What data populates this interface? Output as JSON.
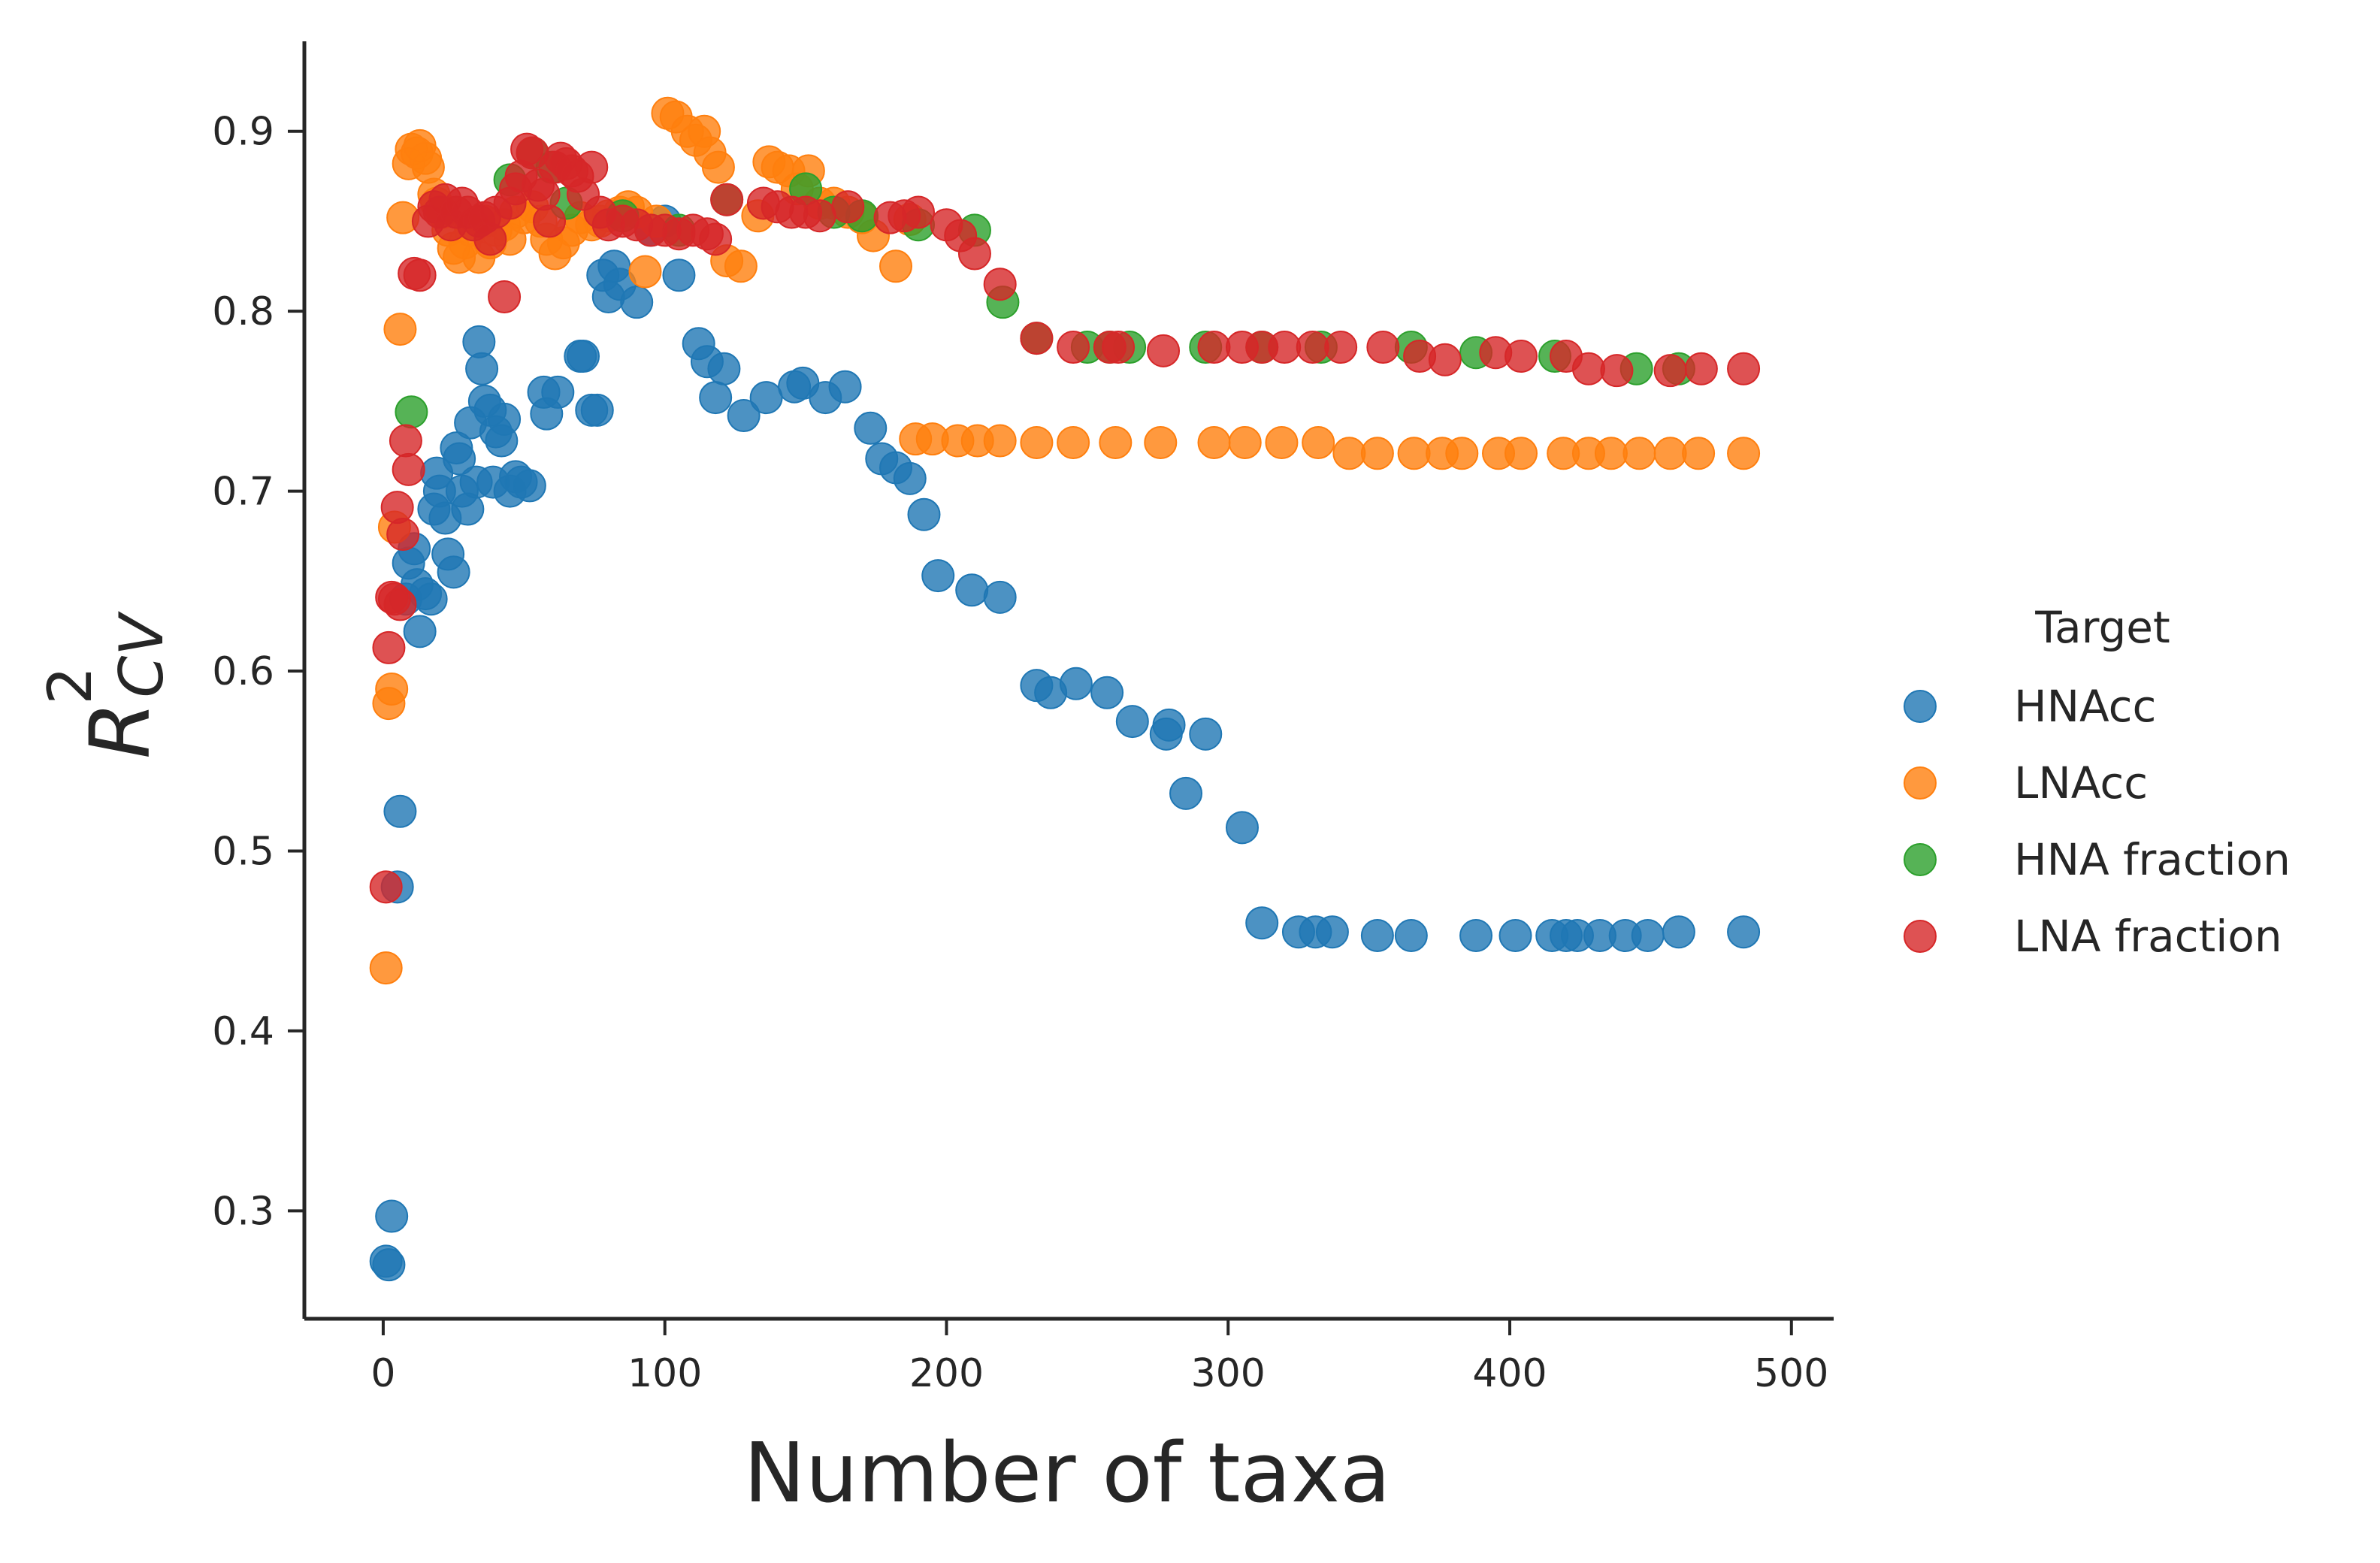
{
  "chart_data": {
    "type": "scatter",
    "xlabel": "Number of taxa",
    "ylabel": {
      "base": "R",
      "sup": "2",
      "sub": "CV"
    },
    "xlim": [
      -28,
      515
    ],
    "ylim": [
      0.24,
      0.95
    ],
    "x_ticks": [
      0,
      100,
      200,
      300,
      400,
      500
    ],
    "y_ticks": [
      0.3,
      0.4,
      0.5,
      0.6,
      0.7,
      0.8,
      0.9
    ],
    "x_tick_labels": [
      "0",
      "100",
      "200",
      "300",
      "400",
      "500"
    ],
    "y_tick_labels": [
      "0.3",
      "0.4",
      "0.5",
      "0.6",
      "0.7",
      "0.8",
      "0.9"
    ],
    "legend": {
      "title": "Target",
      "placement": "right"
    },
    "series": [
      {
        "name": "HNAcc",
        "color": "#1f77b4",
        "points": [
          [
            1,
            0.272
          ],
          [
            2,
            0.27
          ],
          [
            3,
            0.297
          ],
          [
            5,
            0.48
          ],
          [
            6,
            0.522
          ],
          [
            8,
            0.64
          ],
          [
            9,
            0.66
          ],
          [
            11,
            0.668
          ],
          [
            12,
            0.648
          ],
          [
            13,
            0.622
          ],
          [
            15,
            0.643
          ],
          [
            17,
            0.64
          ],
          [
            18,
            0.69
          ],
          [
            19,
            0.71
          ],
          [
            20,
            0.7
          ],
          [
            22,
            0.685
          ],
          [
            23,
            0.665
          ],
          [
            25,
            0.655
          ],
          [
            26,
            0.724
          ],
          [
            27,
            0.718
          ],
          [
            28,
            0.7
          ],
          [
            30,
            0.69
          ],
          [
            31,
            0.738
          ],
          [
            33,
            0.705
          ],
          [
            34,
            0.783
          ],
          [
            35,
            0.768
          ],
          [
            36,
            0.75
          ],
          [
            38,
            0.745
          ],
          [
            39,
            0.705
          ],
          [
            40,
            0.733
          ],
          [
            42,
            0.728
          ],
          [
            43,
            0.74
          ],
          [
            45,
            0.7
          ],
          [
            47,
            0.708
          ],
          [
            49,
            0.705
          ],
          [
            52,
            0.703
          ],
          [
            57,
            0.755
          ],
          [
            58,
            0.743
          ],
          [
            62,
            0.755
          ],
          [
            70,
            0.775
          ],
          [
            71,
            0.775
          ],
          [
            74,
            0.745
          ],
          [
            76,
            0.745
          ],
          [
            78,
            0.82
          ],
          [
            80,
            0.808
          ],
          [
            82,
            0.825
          ],
          [
            84,
            0.815
          ],
          [
            90,
            0.805
          ],
          [
            95,
            0.845
          ],
          [
            100,
            0.85
          ],
          [
            105,
            0.82
          ],
          [
            112,
            0.782
          ],
          [
            115,
            0.772
          ],
          [
            118,
            0.752
          ],
          [
            121,
            0.768
          ],
          [
            128,
            0.742
          ],
          [
            136,
            0.752
          ],
          [
            146,
            0.758
          ],
          [
            149,
            0.76
          ],
          [
            157,
            0.752
          ],
          [
            164,
            0.758
          ],
          [
            173,
            0.735
          ],
          [
            177,
            0.718
          ],
          [
            182,
            0.713
          ],
          [
            187,
            0.707
          ],
          [
            192,
            0.687
          ],
          [
            197,
            0.653
          ],
          [
            209,
            0.645
          ],
          [
            219,
            0.641
          ],
          [
            232,
            0.592
          ],
          [
            237,
            0.588
          ],
          [
            246,
            0.593
          ],
          [
            257,
            0.588
          ],
          [
            266,
            0.572
          ],
          [
            278,
            0.565
          ],
          [
            279,
            0.57
          ],
          [
            285,
            0.532
          ],
          [
            292,
            0.565
          ],
          [
            305,
            0.513
          ],
          [
            312,
            0.46
          ],
          [
            325,
            0.455
          ],
          [
            331,
            0.455
          ],
          [
            337,
            0.455
          ],
          [
            353,
            0.453
          ],
          [
            365,
            0.453
          ],
          [
            388,
            0.453
          ],
          [
            402,
            0.453
          ],
          [
            415,
            0.453
          ],
          [
            420,
            0.453
          ],
          [
            424,
            0.453
          ],
          [
            432,
            0.453
          ],
          [
            441,
            0.453
          ],
          [
            449,
            0.453
          ],
          [
            460,
            0.455
          ],
          [
            483,
            0.455
          ]
        ]
      },
      {
        "name": "LNAcc",
        "color": "#ff7f0e",
        "points": [
          [
            1,
            0.435
          ],
          [
            2,
            0.582
          ],
          [
            3,
            0.59
          ],
          [
            4,
            0.68
          ],
          [
            6,
            0.79
          ],
          [
            7,
            0.852
          ],
          [
            9,
            0.882
          ],
          [
            10,
            0.89
          ],
          [
            12,
            0.888
          ],
          [
            13,
            0.892
          ],
          [
            15,
            0.885
          ],
          [
            16,
            0.88
          ],
          [
            18,
            0.865
          ],
          [
            19,
            0.86
          ],
          [
            21,
            0.855
          ],
          [
            23,
            0.845
          ],
          [
            25,
            0.835
          ],
          [
            27,
            0.83
          ],
          [
            29,
            0.838
          ],
          [
            31,
            0.845
          ],
          [
            34,
            0.83
          ],
          [
            36,
            0.85
          ],
          [
            38,
            0.838
          ],
          [
            40,
            0.845
          ],
          [
            43,
            0.848
          ],
          [
            45,
            0.84
          ],
          [
            47,
            0.855
          ],
          [
            50,
            0.852
          ],
          [
            53,
            0.858
          ],
          [
            56,
            0.85
          ],
          [
            58,
            0.84
          ],
          [
            61,
            0.832
          ],
          [
            64,
            0.838
          ],
          [
            67,
            0.845
          ],
          [
            70,
            0.852
          ],
          [
            74,
            0.848
          ],
          [
            77,
            0.85
          ],
          [
            80,
            0.853
          ],
          [
            84,
            0.855
          ],
          [
            87,
            0.858
          ],
          [
            90,
            0.855
          ],
          [
            93,
            0.822
          ],
          [
            97,
            0.85
          ],
          [
            101,
            0.91
          ],
          [
            104,
            0.908
          ],
          [
            108,
            0.9
          ],
          [
            111,
            0.895
          ],
          [
            114,
            0.9
          ],
          [
            116,
            0.888
          ],
          [
            119,
            0.88
          ],
          [
            122,
            0.828
          ],
          [
            127,
            0.825
          ],
          [
            133,
            0.853
          ],
          [
            137,
            0.883
          ],
          [
            140,
            0.88
          ],
          [
            144,
            0.878
          ],
          [
            147,
            0.868
          ],
          [
            151,
            0.878
          ],
          [
            155,
            0.86
          ],
          [
            160,
            0.86
          ],
          [
            165,
            0.855
          ],
          [
            170,
            0.852
          ],
          [
            174,
            0.842
          ],
          [
            182,
            0.825
          ],
          [
            187,
            0.851
          ],
          [
            189,
            0.729
          ],
          [
            195,
            0.729
          ],
          [
            204,
            0.728
          ],
          [
            211,
            0.728
          ],
          [
            219,
            0.728
          ],
          [
            232,
            0.727
          ],
          [
            245,
            0.727
          ],
          [
            260,
            0.727
          ],
          [
            276,
            0.727
          ],
          [
            295,
            0.727
          ],
          [
            306,
            0.727
          ],
          [
            319,
            0.727
          ],
          [
            332,
            0.727
          ],
          [
            343,
            0.721
          ],
          [
            353,
            0.721
          ],
          [
            366,
            0.721
          ],
          [
            376,
            0.721
          ],
          [
            383,
            0.721
          ],
          [
            396,
            0.721
          ],
          [
            404,
            0.721
          ],
          [
            419,
            0.721
          ],
          [
            428,
            0.721
          ],
          [
            436,
            0.721
          ],
          [
            446,
            0.721
          ],
          [
            457,
            0.721
          ],
          [
            467,
            0.721
          ],
          [
            483,
            0.721
          ]
        ]
      },
      {
        "name": "HNA fraction",
        "color": "#2ca02c",
        "points": [
          [
            10,
            0.744
          ],
          [
            45,
            0.873
          ],
          [
            53,
            0.888
          ],
          [
            60,
            0.88
          ],
          [
            65,
            0.86
          ],
          [
            85,
            0.853
          ],
          [
            105,
            0.845
          ],
          [
            122,
            0.862
          ],
          [
            150,
            0.868
          ],
          [
            160,
            0.855
          ],
          [
            170,
            0.853
          ],
          [
            190,
            0.848
          ],
          [
            210,
            0.845
          ],
          [
            220,
            0.805
          ],
          [
            232,
            0.785
          ],
          [
            250,
            0.78
          ],
          [
            258,
            0.78
          ],
          [
            265,
            0.78
          ],
          [
            292,
            0.78
          ],
          [
            312,
            0.78
          ],
          [
            333,
            0.78
          ],
          [
            365,
            0.78
          ],
          [
            388,
            0.777
          ],
          [
            416,
            0.775
          ],
          [
            445,
            0.768
          ],
          [
            460,
            0.768
          ]
        ]
      },
      {
        "name": "LNA fraction",
        "color": "#d62728",
        "points": [
          [
            1,
            0.48
          ],
          [
            2,
            0.613
          ],
          [
            3,
            0.641
          ],
          [
            4,
            0.64
          ],
          [
            5,
            0.691
          ],
          [
            6,
            0.637
          ],
          [
            7,
            0.676
          ],
          [
            8,
            0.728
          ],
          [
            9,
            0.712
          ],
          [
            11,
            0.821
          ],
          [
            13,
            0.82
          ],
          [
            16,
            0.85
          ],
          [
            18,
            0.858
          ],
          [
            20,
            0.855
          ],
          [
            22,
            0.862
          ],
          [
            24,
            0.848
          ],
          [
            26,
            0.855
          ],
          [
            28,
            0.86
          ],
          [
            30,
            0.855
          ],
          [
            32,
            0.848
          ],
          [
            34,
            0.85
          ],
          [
            36,
            0.852
          ],
          [
            38,
            0.84
          ],
          [
            40,
            0.855
          ],
          [
            43,
            0.808
          ],
          [
            45,
            0.86
          ],
          [
            47,
            0.868
          ],
          [
            49,
            0.875
          ],
          [
            51,
            0.89
          ],
          [
            53,
            0.888
          ],
          [
            55,
            0.87
          ],
          [
            57,
            0.865
          ],
          [
            59,
            0.85
          ],
          [
            61,
            0.88
          ],
          [
            63,
            0.885
          ],
          [
            65,
            0.882
          ],
          [
            67,
            0.878
          ],
          [
            69,
            0.875
          ],
          [
            71,
            0.865
          ],
          [
            74,
            0.88
          ],
          [
            77,
            0.855
          ],
          [
            80,
            0.848
          ],
          [
            85,
            0.85
          ],
          [
            90,
            0.848
          ],
          [
            95,
            0.845
          ],
          [
            100,
            0.845
          ],
          [
            105,
            0.843
          ],
          [
            110,
            0.845
          ],
          [
            115,
            0.843
          ],
          [
            118,
            0.84
          ],
          [
            122,
            0.862
          ],
          [
            135,
            0.86
          ],
          [
            140,
            0.858
          ],
          [
            145,
            0.855
          ],
          [
            150,
            0.855
          ],
          [
            155,
            0.853
          ],
          [
            165,
            0.858
          ],
          [
            180,
            0.852
          ],
          [
            185,
            0.853
          ],
          [
            190,
            0.855
          ],
          [
            200,
            0.848
          ],
          [
            205,
            0.842
          ],
          [
            210,
            0.832
          ],
          [
            219,
            0.815
          ],
          [
            232,
            0.785
          ],
          [
            245,
            0.78
          ],
          [
            258,
            0.78
          ],
          [
            261,
            0.78
          ],
          [
            277,
            0.778
          ],
          [
            295,
            0.78
          ],
          [
            305,
            0.78
          ],
          [
            312,
            0.78
          ],
          [
            320,
            0.78
          ],
          [
            330,
            0.78
          ],
          [
            340,
            0.78
          ],
          [
            355,
            0.78
          ],
          [
            368,
            0.775
          ],
          [
            377,
            0.773
          ],
          [
            395,
            0.777
          ],
          [
            404,
            0.775
          ],
          [
            420,
            0.775
          ],
          [
            428,
            0.768
          ],
          [
            438,
            0.767
          ],
          [
            457,
            0.767
          ],
          [
            468,
            0.768
          ],
          [
            483,
            0.768
          ]
        ]
      }
    ]
  }
}
